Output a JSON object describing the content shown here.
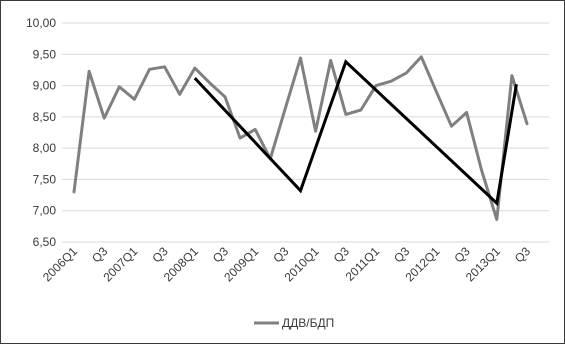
{
  "chart_data": {
    "type": "line",
    "title": "",
    "xlabel": "",
    "ylabel": "",
    "ylim": [
      6.5,
      10.0
    ],
    "yticks": [
      "10,00",
      "9,50",
      "9,00",
      "8,50",
      "8,00",
      "7,50",
      "7,00",
      "6,50"
    ],
    "grid": "horizontal",
    "legend_position": "bottom",
    "x_tick_labels": [
      {
        "index": 0,
        "label": "2006Q1"
      },
      {
        "index": 2,
        "label": "Q3"
      },
      {
        "index": 4,
        "label": "2007Q1"
      },
      {
        "index": 6,
        "label": "Q3"
      },
      {
        "index": 8,
        "label": "2008Q1"
      },
      {
        "index": 10,
        "label": "Q3"
      },
      {
        "index": 12,
        "label": "2009Q1"
      },
      {
        "index": 14,
        "label": "Q3"
      },
      {
        "index": 16,
        "label": "2010Q1"
      },
      {
        "index": 18,
        "label": "Q3"
      },
      {
        "index": 20,
        "label": "2011Q1"
      },
      {
        "index": 22,
        "label": "Q3"
      },
      {
        "index": 24,
        "label": "2012Q1"
      },
      {
        "index": 26,
        "label": "Q3"
      },
      {
        "index": 28,
        "label": "2013Q1"
      },
      {
        "index": 30,
        "label": "Q3"
      }
    ],
    "series": [
      {
        "name": "ДДВ/БДП",
        "color": "#808080",
        "values": [
          7.3,
          9.23,
          8.48,
          8.98,
          8.78,
          9.26,
          9.3,
          8.86,
          9.28,
          9.04,
          8.82,
          8.16,
          8.3,
          7.83,
          8.64,
          9.44,
          8.27,
          9.4,
          8.54,
          8.61,
          9.0,
          9.07,
          9.2,
          9.46,
          8.9,
          8.35,
          8.57,
          7.64,
          6.86,
          9.16,
          8.39
        ]
      }
    ],
    "overlay_line": {
      "color": "#000000",
      "points": [
        [
          8,
          9.12
        ],
        [
          15,
          7.32
        ],
        [
          18,
          9.38
        ],
        [
          28,
          7.12
        ],
        [
          29.3,
          9.02
        ]
      ]
    }
  }
}
